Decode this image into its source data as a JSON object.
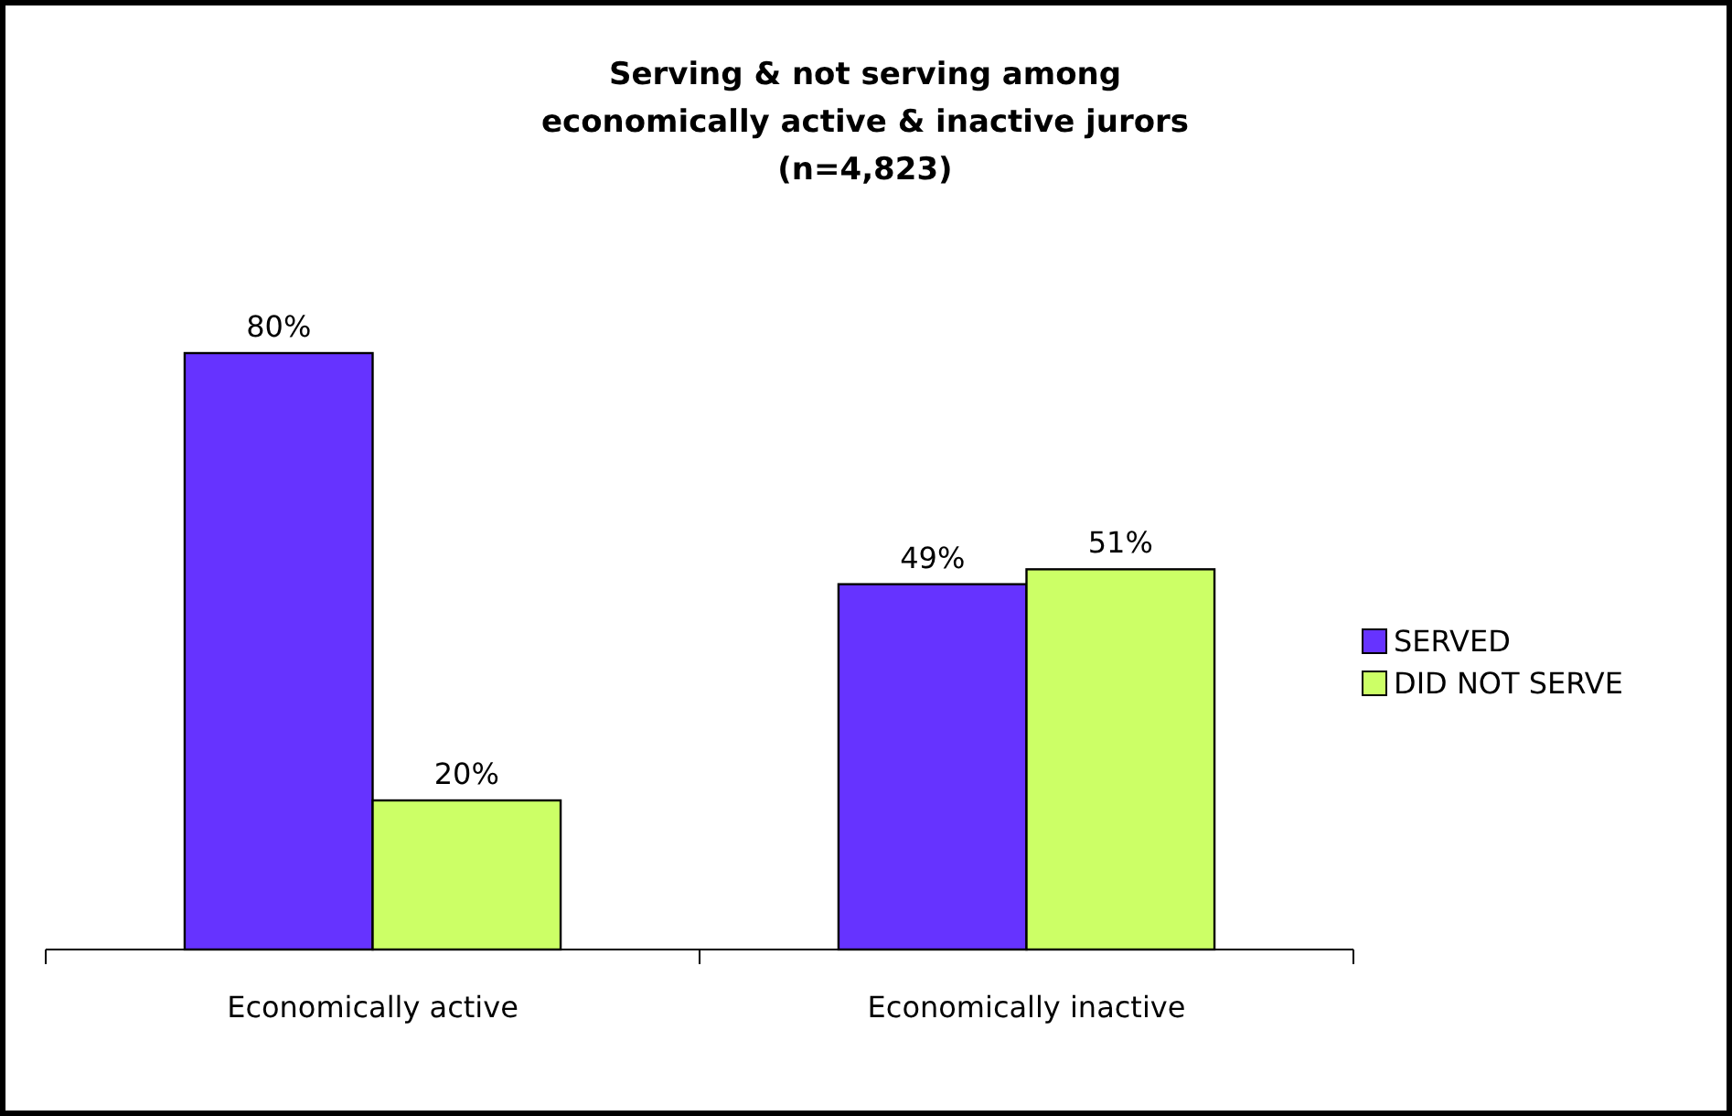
{
  "chart_data": {
    "type": "bar",
    "title": "Serving & not serving among\neconomically active & inactive jurors\n(n=4,823)",
    "categories": [
      "Economically active",
      "Economically inactive"
    ],
    "series": [
      {
        "name": "SERVED",
        "color": "#6633ff",
        "values": [
          80,
          49
        ],
        "value_labels": [
          "80%",
          "49%"
        ]
      },
      {
        "name": "DID NOT SERVE",
        "color": "#ccff66",
        "values": [
          20,
          51
        ],
        "value_labels": [
          "20%",
          "51%"
        ]
      }
    ],
    "tick_labels": "x",
    "legend": "right"
  }
}
